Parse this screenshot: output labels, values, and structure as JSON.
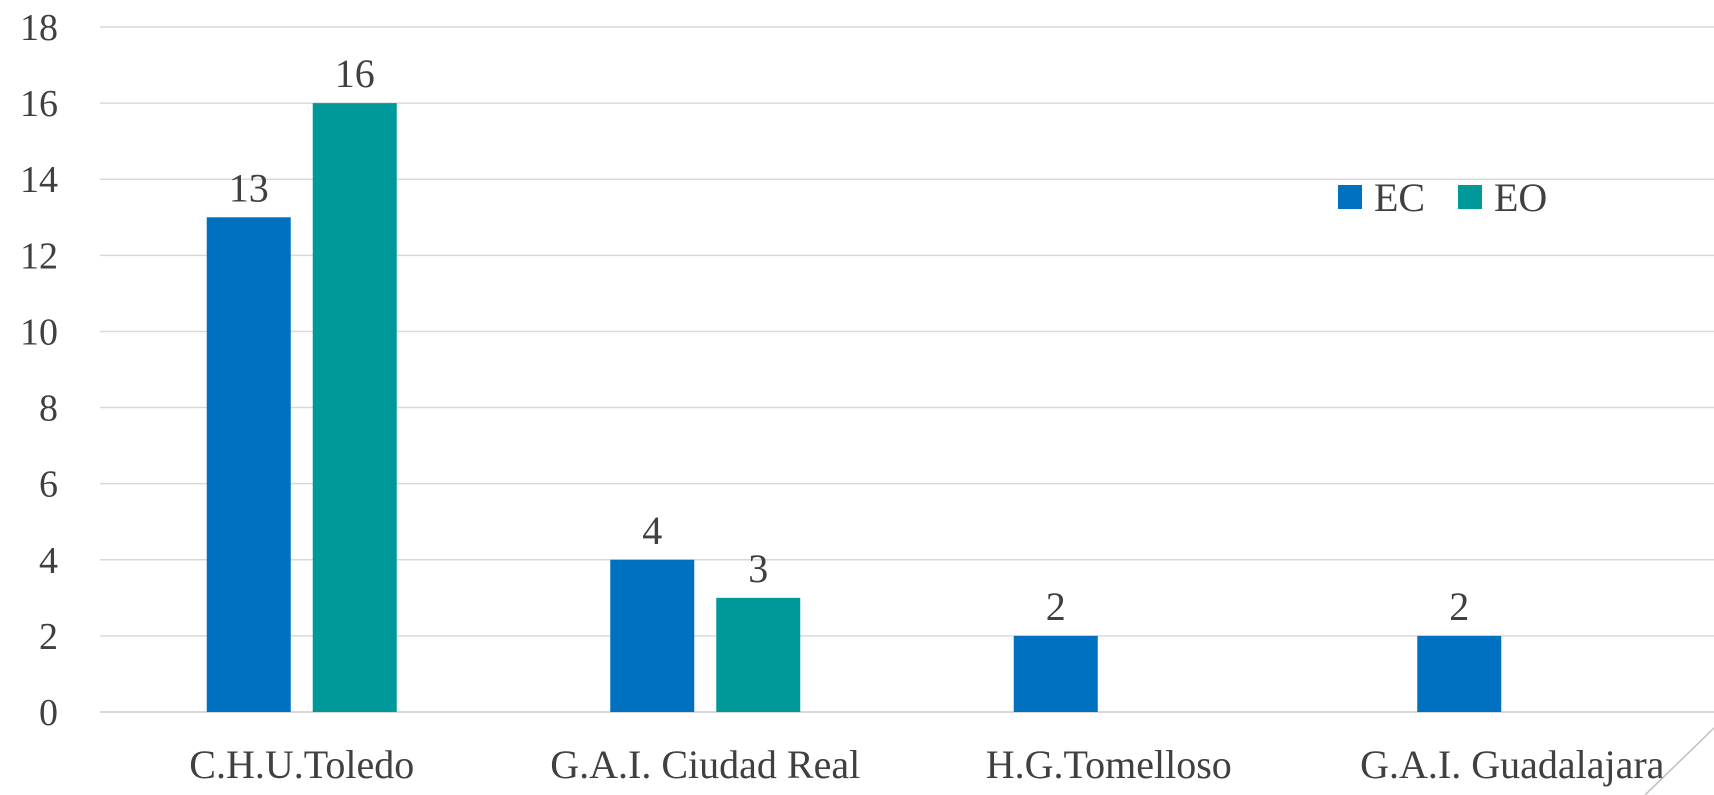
{
  "chart_data": {
    "type": "bar",
    "categories": [
      "C.H.U.Toledo",
      "G.A.I. Ciudad Real",
      "H.G.Tomelloso",
      "G.A.I. Guadalajara"
    ],
    "series": [
      {
        "name": "EC",
        "values": [
          13,
          4,
          2,
          2
        ],
        "color": "#0070c0"
      },
      {
        "name": "EO",
        "values": [
          16,
          3,
          null,
          null
        ],
        "color": "#009999"
      }
    ],
    "ylim": [
      0,
      18
    ],
    "yticks": [
      0,
      2,
      4,
      6,
      8,
      10,
      12,
      14,
      16,
      18
    ],
    "grid": true,
    "legend_position": "top-right",
    "data_labels": true
  }
}
